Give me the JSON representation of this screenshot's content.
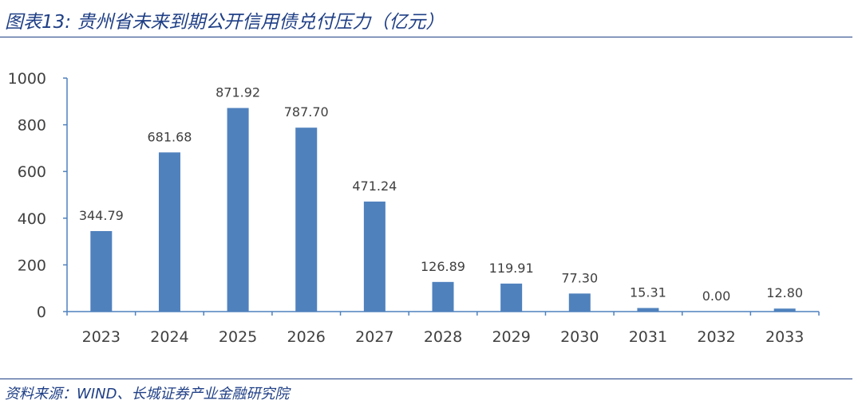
{
  "header": {
    "title": "图表13:  贵州省未来到期公开信用债兑付压力（亿元）"
  },
  "footer": {
    "source": "资料来源：WIND、长城证券产业金融研究院"
  },
  "chart_data": {
    "type": "bar",
    "categories": [
      "2023",
      "2024",
      "2025",
      "2026",
      "2027",
      "2028",
      "2029",
      "2030",
      "2031",
      "2032",
      "2033"
    ],
    "values": [
      344.79,
      681.68,
      871.92,
      787.7,
      471.24,
      126.89,
      119.91,
      77.3,
      15.31,
      0.0,
      12.8
    ],
    "data_labels": [
      "344.79",
      "681.68",
      "871.92",
      "787.70",
      "471.24",
      "126.89",
      "119.91",
      "77.30",
      "15.31",
      "0.00",
      "12.80"
    ],
    "y_ticks": [
      0,
      200,
      400,
      600,
      800,
      1000
    ],
    "ylim": [
      0,
      1000
    ],
    "bar_color": "#4f81bd",
    "grid": false,
    "legend": "none"
  }
}
